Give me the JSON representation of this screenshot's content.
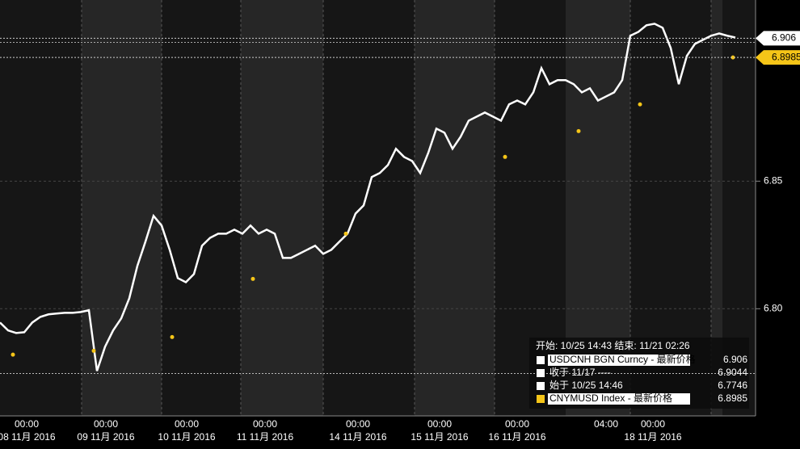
{
  "chart_data": {
    "type": "line",
    "ylim": [
      6.758,
      6.921
    ],
    "yticks": [
      {
        "value": 6.8,
        "label": "6.80"
      },
      6.85
    ],
    "xlim": [
      0,
      91
    ],
    "xticks": [
      {
        "value": 3.3,
        "label": "00:00"
      },
      {
        "value": 13.1,
        "label": "00:00"
      },
      {
        "value": 23.1,
        "label": "00:00"
      },
      {
        "value": 32.8,
        "label": "00:00"
      },
      {
        "value": 44.3,
        "label": "00:00"
      },
      {
        "value": 54.4,
        "label": "00:00"
      },
      {
        "value": 64.0,
        "label": "00:00"
      },
      {
        "value": 75.0,
        "label": "04:00"
      },
      {
        "value": 80.8,
        "label": "00:00"
      }
    ],
    "xtick_dates": [
      "08 11月 2016",
      "09 11月 2016",
      "10 11月 2016",
      "11 11月 2016",
      "14 11月 2016",
      "15 11月 2016",
      "16 11月 2016",
      null,
      "18 11月 2016"
    ],
    "legend_title": "开始: 10/25 14:43 结束: 11/21 02:26",
    "series": [
      {
        "name": "USDCNH BGN Curncy - 最新价格",
        "color": "#ffffff",
        "last": 6.906,
        "values": [
          6.7946,
          6.7915,
          6.7905,
          6.7908,
          6.7946,
          6.7968,
          6.7978,
          6.7981,
          6.7984,
          6.7984,
          6.7987,
          6.7994,
          6.7756,
          6.7851,
          6.7915,
          6.7962,
          6.8041,
          6.8168,
          6.8263,
          6.8364,
          6.8326,
          6.8231,
          6.812,
          6.8104,
          6.8136,
          6.8247,
          6.8278,
          6.8294,
          6.8294,
          6.831,
          6.8294,
          6.8326,
          6.8294,
          6.831,
          6.8294,
          6.8199,
          6.8199,
          6.8215,
          6.8231,
          6.8247,
          6.8215,
          6.8231,
          6.8263,
          6.8294,
          6.8373,
          6.8405,
          6.8516,
          6.8532,
          6.8563,
          6.8627,
          6.8595,
          6.8579,
          6.8532,
          6.8611,
          6.8706,
          6.869,
          6.8627,
          6.8674,
          6.8737,
          6.8753,
          6.8769,
          6.8753,
          6.8737,
          6.8801,
          6.8816,
          6.8801,
          6.8848,
          6.8943,
          6.888,
          6.8896,
          6.8896,
          6.888,
          6.8848,
          6.8864,
          6.8816,
          6.8832,
          6.8848,
          6.8896,
          6.907,
          6.9085,
          6.9111,
          6.9117,
          6.9101,
          6.9022,
          6.888,
          6.8991,
          6.9038,
          6.9054,
          6.907,
          6.9079,
          6.907,
          6.9063
        ]
      },
      {
        "name": "CNYMUSD Index - 最新价格",
        "color": "#f5c518",
        "last": 6.8985,
        "x": [
          1.6,
          11.6,
          21.3,
          31.3,
          42.8,
          62.5,
          71.6,
          79.2,
          90.7
        ],
        "values": [
          6.782,
          6.7835,
          6.7889,
          6.8117,
          6.8294,
          6.8595,
          6.8696,
          6.8801,
          6.8985
        ]
      }
    ],
    "close_label": "收于 11/17 ----",
    "close": 6.9044,
    "open_label": "始于 10/25 14:46",
    "open": 6.7746
  }
}
